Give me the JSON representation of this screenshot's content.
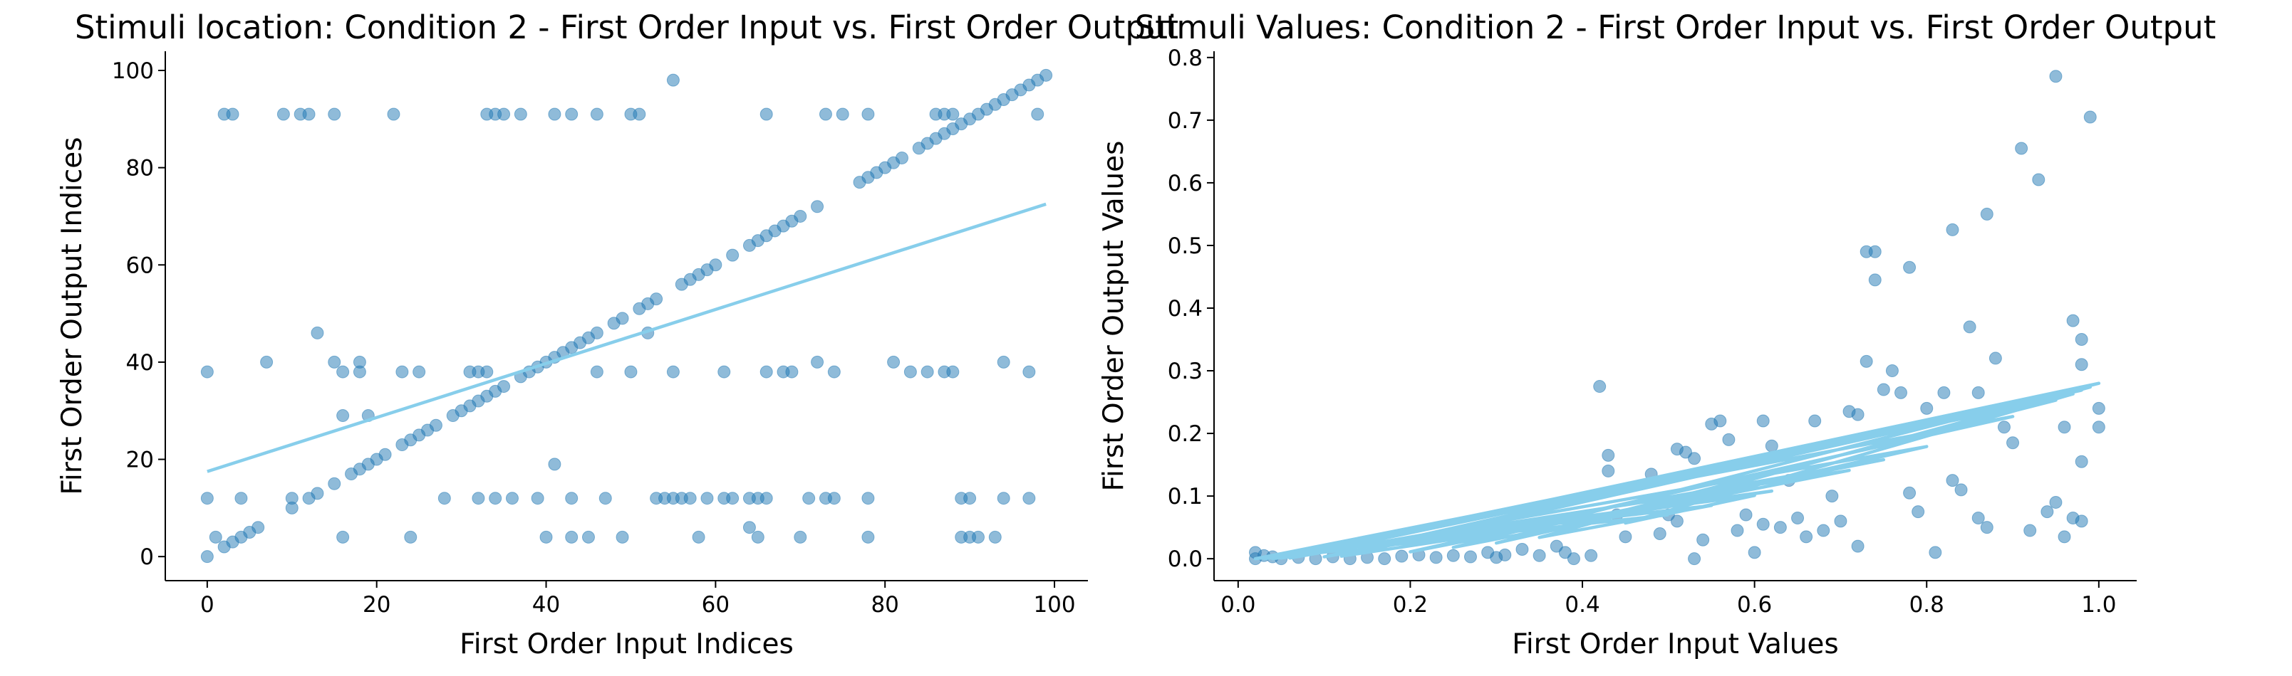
{
  "chart_data": [
    {
      "type": "scatter",
      "title": "Stimuli location: Condition 2 - First Order Input vs. First Order Output",
      "xlabel": "First Order Input Indices",
      "ylabel": "First Order Output Indices",
      "xlim": [
        -4.95,
        103.95
      ],
      "ylim": [
        -4.95,
        103.95
      ],
      "xticks": [
        0,
        20,
        40,
        60,
        80,
        100
      ],
      "yticks": [
        0,
        20,
        40,
        60,
        80,
        100
      ],
      "series": [
        {
          "type": "scatter",
          "color": "#1f77b4",
          "x": [
            0,
            2,
            3,
            4,
            5,
            13,
            15,
            17,
            18,
            19,
            20,
            21,
            23,
            24,
            25,
            26,
            27,
            29,
            30,
            31,
            32,
            33,
            34,
            35,
            37,
            38,
            39,
            40,
            41,
            42,
            43,
            44,
            45,
            46,
            48,
            49,
            51,
            52,
            53,
            56,
            57,
            58,
            59,
            60,
            62,
            64,
            65,
            66,
            67,
            68,
            69,
            70,
            72,
            77,
            78,
            79,
            80,
            81,
            82,
            84,
            85,
            86,
            87,
            88,
            89,
            90,
            91,
            92,
            93,
            94,
            95,
            96,
            97,
            98,
            99,
            2,
            3,
            9,
            11,
            12,
            15,
            22,
            33,
            34,
            35,
            37,
            41,
            43,
            46,
            50,
            51,
            66,
            73,
            75,
            78,
            86,
            87,
            88,
            98,
            55,
            0,
            16,
            18,
            23,
            25,
            31,
            32,
            33,
            46,
            50,
            55,
            61,
            66,
            68,
            69,
            74,
            83,
            85,
            87,
            88,
            97,
            7,
            15,
            18,
            72,
            81,
            94,
            13,
            52,
            16,
            19,
            0,
            4,
            10,
            12,
            28,
            32,
            34,
            36,
            39,
            43,
            47,
            53,
            54,
            55,
            56,
            57,
            59,
            61,
            62,
            64,
            65,
            66,
            71,
            73,
            74,
            78,
            89,
            90,
            94,
            97,
            1,
            16,
            24,
            40,
            43,
            45,
            49,
            58,
            65,
            70,
            78,
            89,
            90,
            91,
            93,
            41,
            6,
            64,
            10
          ],
          "values": [
            0,
            2,
            3,
            4,
            5,
            13,
            15,
            17,
            18,
            19,
            20,
            21,
            23,
            24,
            25,
            26,
            27,
            29,
            30,
            31,
            32,
            33,
            34,
            35,
            37,
            38,
            39,
            40,
            41,
            42,
            43,
            44,
            45,
            46,
            48,
            49,
            51,
            52,
            53,
            56,
            57,
            58,
            59,
            60,
            62,
            64,
            65,
            66,
            67,
            68,
            69,
            70,
            72,
            77,
            78,
            79,
            80,
            81,
            82,
            84,
            85,
            86,
            87,
            88,
            89,
            90,
            91,
            92,
            93,
            94,
            95,
            96,
            97,
            98,
            99,
            91,
            91,
            91,
            91,
            91,
            91,
            91,
            91,
            91,
            91,
            91,
            91,
            91,
            91,
            91,
            91,
            91,
            91,
            91,
            91,
            91,
            91,
            91,
            91,
            98,
            38,
            38,
            38,
            38,
            38,
            38,
            38,
            38,
            38,
            38,
            38,
            38,
            38,
            38,
            38,
            38,
            38,
            38,
            38,
            38,
            38,
            40,
            40,
            40,
            40,
            40,
            40,
            46,
            46,
            29,
            29,
            12,
            12,
            12,
            12,
            12,
            12,
            12,
            12,
            12,
            12,
            12,
            12,
            12,
            12,
            12,
            12,
            12,
            12,
            12,
            12,
            12,
            12,
            12,
            12,
            12,
            12,
            12,
            12,
            12,
            12,
            4,
            4,
            4,
            4,
            4,
            4,
            4,
            4,
            4,
            4,
            4,
            4,
            4,
            4,
            4,
            19,
            6,
            6,
            10
          ]
        },
        {
          "type": "line",
          "color": "#87ceeb",
          "x": [
            0,
            99
          ],
          "values": [
            17.5,
            72.5
          ]
        }
      ]
    },
    {
      "type": "scatter",
      "title": "Stimuli Values: Condition 2 - First Order Input vs. First Order Output",
      "xlabel": "First Order Input Values",
      "ylabel": "First Order Output Values",
      "xlim": [
        -0.028,
        1.044
      ],
      "ylim": [
        -0.035,
        0.81
      ],
      "xticks": [
        {
          "value": 0,
          "label": "0.0"
        },
        0.2,
        0.4,
        0.6,
        0.8,
        {
          "value": 1,
          "label": "1.0"
        }
      ],
      "yticks": [
        {
          "value": 0,
          "label": "0.0"
        },
        0.1,
        0.2,
        0.3,
        0.4,
        0.5,
        0.6,
        0.7,
        0.8
      ],
      "series": [
        {
          "type": "scatter",
          "color": "#1f77b4",
          "x": [
            0.02,
            0.02,
            0.03,
            0.04,
            0.05,
            0.07,
            0.09,
            0.11,
            0.13,
            0.15,
            0.17,
            0.19,
            0.21,
            0.23,
            0.25,
            0.27,
            0.29,
            0.3,
            0.31,
            0.33,
            0.35,
            0.37,
            0.38,
            0.39,
            0.41,
            0.42,
            0.43,
            0.43,
            0.44,
            0.45,
            0.48,
            0.49,
            0.5,
            0.51,
            0.51,
            0.52,
            0.53,
            0.53,
            0.54,
            0.55,
            0.56,
            0.57,
            0.58,
            0.59,
            0.6,
            0.61,
            0.61,
            0.62,
            0.63,
            0.65,
            0.66,
            0.68,
            0.69,
            0.7,
            0.71,
            0.72,
            0.72,
            0.73,
            0.73,
            0.74,
            0.74,
            0.75,
            0.76,
            0.77,
            0.78,
            0.78,
            0.79,
            0.8,
            0.81,
            0.82,
            0.83,
            0.83,
            0.84,
            0.85,
            0.86,
            0.87,
            0.87,
            0.88,
            0.89,
            0.9,
            0.91,
            0.92,
            0.93,
            0.94,
            0.95,
            0.95,
            0.96,
            0.96,
            0.97,
            0.97,
            0.98,
            0.98,
            0.98,
            0.99,
            1.0,
            1.0,
            0.98,
            0.86,
            0.67,
            0.64
          ],
          "values": [
            0.01,
            0.0,
            0.005,
            0.003,
            0.0,
            0.002,
            0.0,
            0.003,
            0.0,
            0.002,
            0.0,
            0.004,
            0.006,
            0.002,
            0.005,
            0.003,
            0.01,
            0.002,
            0.006,
            0.015,
            0.005,
            0.02,
            0.01,
            0.0,
            0.005,
            0.275,
            0.14,
            0.165,
            0.07,
            0.035,
            0.135,
            0.04,
            0.07,
            0.06,
            0.175,
            0.17,
            0.16,
            0.0,
            0.03,
            0.215,
            0.22,
            0.19,
            0.045,
            0.07,
            0.01,
            0.22,
            0.055,
            0.18,
            0.05,
            0.065,
            0.035,
            0.045,
            0.1,
            0.06,
            0.235,
            0.23,
            0.02,
            0.315,
            0.49,
            0.49,
            0.445,
            0.27,
            0.3,
            0.265,
            0.465,
            0.105,
            0.075,
            0.24,
            0.01,
            0.265,
            0.125,
            0.525,
            0.11,
            0.37,
            0.065,
            0.55,
            0.05,
            0.32,
            0.21,
            0.185,
            0.655,
            0.045,
            0.605,
            0.075,
            0.09,
            0.77,
            0.21,
            0.035,
            0.38,
            0.065,
            0.35,
            0.155,
            0.31,
            0.705,
            0.24,
            0.21,
            0.06,
            0.265,
            0.22,
            0.125
          ]
        },
        {
          "type": "line",
          "color": "#87ceeb",
          "x": [
            0.5,
            0.03,
            0.98,
            0.12,
            0.62,
            0.04,
            1.0,
            0.25,
            0.71,
            0.05,
            0.99,
            0.35,
            0.55,
            0.02,
            0.95,
            0.3,
            0.8,
            0.06,
            0.97,
            0.45,
            0.6,
            0.03,
            0.9,
            0.2,
            0.75,
            0.1,
            1.0
          ],
          "values": [
            0.07,
            0.0,
            0.269,
            0.004,
            0.108,
            0.0,
            0.28,
            0.018,
            0.141,
            0.001,
            0.274,
            0.034,
            0.085,
            0.0,
            0.253,
            0.025,
            0.179,
            0.001,
            0.263,
            0.057,
            0.101,
            0.0,
            0.227,
            0.011,
            0.158,
            0.003,
            0.28
          ]
        }
      ]
    }
  ]
}
